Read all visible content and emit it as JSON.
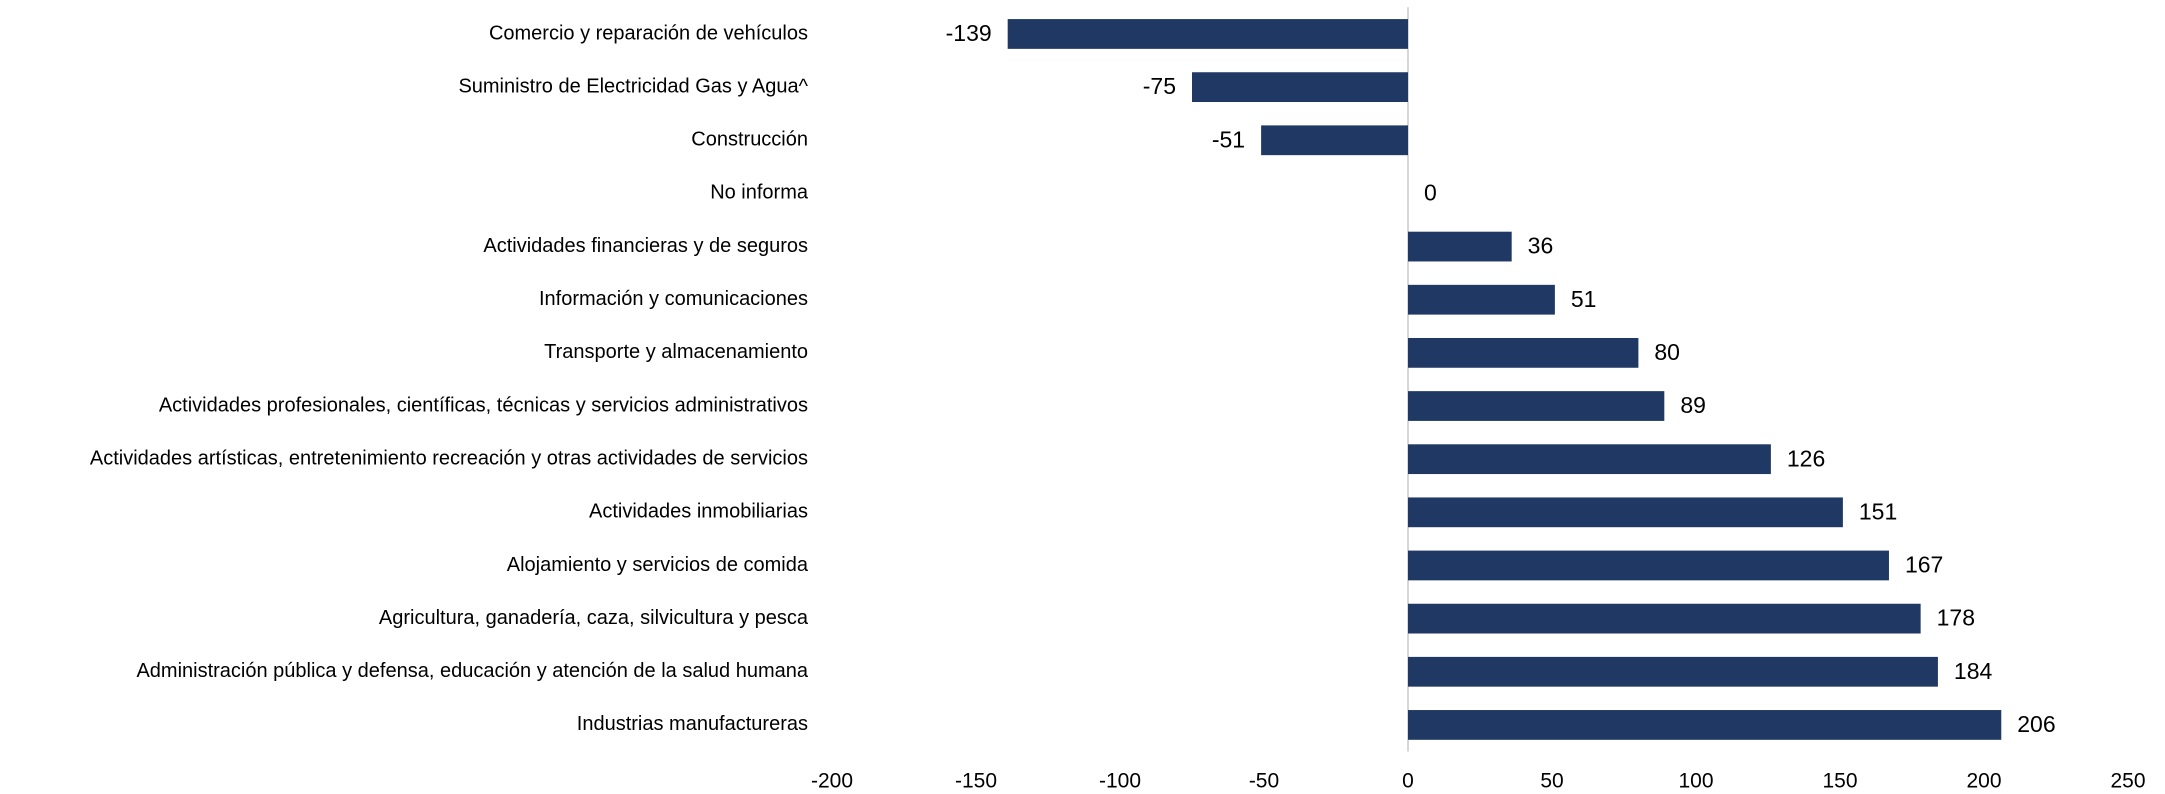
{
  "chart_data": {
    "type": "barh",
    "categories": [
      "Comercio y reparación de vehículos",
      "Suministro de Electricidad Gas y Agua^",
      "Construcción",
      "No informa",
      "Actividades financieras y de seguros",
      "Información y comunicaciones",
      "Transporte y almacenamiento",
      "Actividades profesionales, científicas, técnicas y servicios administrativos",
      "Actividades artísticas, entretenimiento recreación y otras actividades de servicios",
      "Actividades inmobiliarias",
      "Alojamiento y servicios de comida",
      "Agricultura, ganadería, caza, silvicultura y pesca",
      "Administración pública y defensa, educación y atención de la salud humana",
      "Industrias manufactureras"
    ],
    "values": [
      -139,
      -75,
      -51,
      0,
      36,
      51,
      80,
      89,
      126,
      151,
      167,
      178,
      184,
      206
    ],
    "color": "#203864",
    "xlim": [
      -200,
      250
    ],
    "xticks": [
      -200,
      -150,
      -100,
      -50,
      0,
      50,
      100,
      150,
      200,
      250
    ],
    "grid": false
  }
}
